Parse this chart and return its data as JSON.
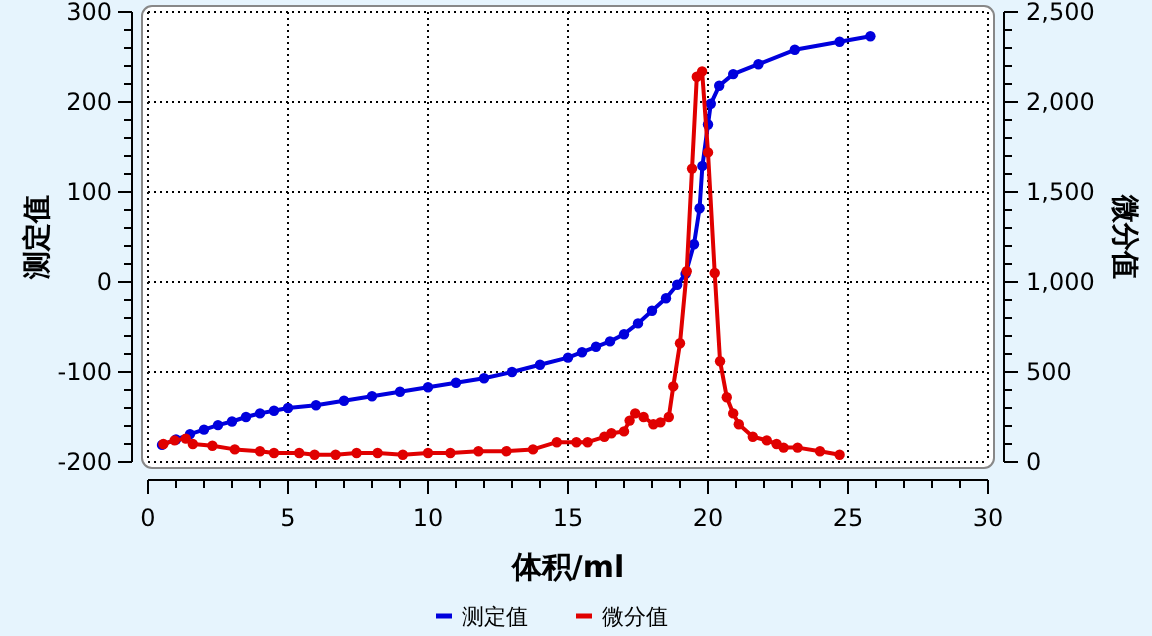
{
  "chart_data": {
    "type": "line",
    "xlabel": "体积/ml",
    "ylabel": "测定值",
    "y2label": "微分值",
    "xlim": [
      0,
      30
    ],
    "xticks": [
      0,
      5,
      10,
      15,
      20,
      25,
      30
    ],
    "ylim": [
      -200,
      300
    ],
    "yticks": [
      -200,
      -100,
      0,
      100,
      200,
      300
    ],
    "y2lim": [
      0,
      2500
    ],
    "y2ticks": [
      0,
      500,
      {
        "value": 1000,
        "label": "1,000"
      },
      {
        "value": 1500,
        "label": "1,500"
      },
      {
        "value": 2000,
        "label": "2,000"
      },
      {
        "value": 2500,
        "label": "2,500"
      }
    ],
    "grid": true,
    "legend": "bottom",
    "marker": "circle",
    "line_style": "solid",
    "series": [
      {
        "name": "测定值",
        "color": "#0000dd",
        "x": [
          0.5,
          1,
          1.5,
          2,
          2.5,
          3,
          3.5,
          4,
          4.5,
          5,
          6,
          7,
          8,
          9,
          10,
          11,
          12,
          13,
          14,
          15,
          15.5,
          16,
          16.5,
          17,
          17.5,
          18,
          18.5,
          18.9,
          19.2,
          19.5,
          19.7,
          19.8,
          20,
          20.1,
          20.4,
          20.9,
          21.8,
          23.1,
          24.7,
          25.8
        ],
        "values": [
          -181,
          -175,
          -169,
          -164,
          -159,
          -155,
          -150,
          -146,
          -143,
          -140,
          -137,
          -132,
          -127,
          -122,
          -117,
          -112,
          -107,
          -100,
          -92,
          -84,
          -78,
          -72,
          -66,
          -58,
          -46,
          -32,
          -18,
          -3,
          9,
          42,
          82,
          129,
          175,
          198,
          218,
          231,
          242,
          258,
          267,
          273
        ]
      },
      {
        "name": "微分值",
        "color": "#e00000",
        "axis": "y2",
        "x": [
          0.55,
          0.95,
          1.35,
          1.6,
          2.3,
          3.1,
          4,
          4.5,
          5.4,
          5.95,
          6.7,
          7.45,
          8.2,
          9.1,
          10,
          10.8,
          11.8,
          12.8,
          13.75,
          14.6,
          15.3,
          15.7,
          16.3,
          16.55,
          17,
          17.2,
          17.4,
          17.7,
          18.05,
          18.3,
          18.6,
          18.76,
          19,
          19.24,
          19.43,
          19.6,
          19.79,
          20,
          20.24,
          20.43,
          20.67,
          20.9,
          21.1,
          21.6,
          22.1,
          22.45,
          22.7,
          23.2,
          24,
          24.7
        ],
        "values": [
          100,
          120,
          130,
          100,
          90,
          70,
          60,
          50,
          50,
          40,
          40,
          50,
          50,
          40,
          50,
          50,
          60,
          60,
          70,
          110,
          110,
          110,
          140,
          160,
          170,
          230,
          270,
          250,
          210,
          220,
          250,
          420,
          660,
          1060,
          1630,
          2140,
          2170,
          1720,
          1050,
          560,
          360,
          270,
          210,
          140,
          120,
          100,
          80,
          80,
          60,
          40
        ]
      }
    ]
  }
}
